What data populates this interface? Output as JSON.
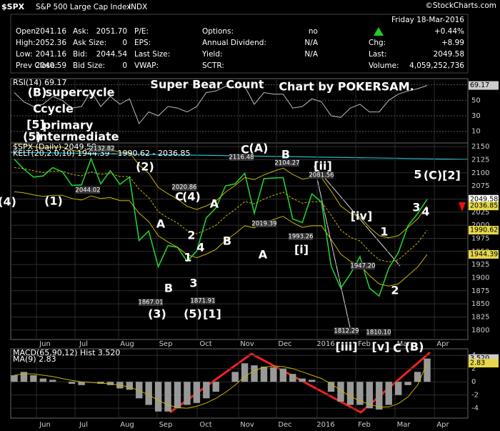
{
  "header": {
    "symbol": "$SPX",
    "name": "S&P 500 Large Cap Index",
    "exchange": "INDX",
    "credit": "©StockCharts.com",
    "date": "Friday 18-Mar-2016"
  },
  "quote": {
    "rows": [
      [
        {
          "label": "Open:",
          "value": "2041.16"
        },
        {
          "label": "Ask:",
          "value": "2051.70"
        },
        {
          "label": "P/E:"
        },
        {
          "label": "Options:",
          "value": "no"
        },
        {
          "value": "+0.44%"
        }
      ],
      [
        {
          "label": "High:",
          "value": "2052.36"
        },
        {
          "label": "Ask Size:",
          "value": "0"
        },
        {
          "label": "EPS:"
        },
        {
          "label": "Annual Dividend:",
          "value": "N/A"
        },
        {
          "label": "Chg:",
          "value": "+8.99"
        }
      ],
      [
        {
          "label": "Low:",
          "value": "2041.16"
        },
        {
          "label": "Bid:",
          "value": "2044.54"
        },
        {
          "label": "Last Size:"
        },
        {
          "label": "Yield:",
          "value": "N/A"
        },
        {
          "label": "Last:",
          "value": "2049.58"
        }
      ],
      [
        {
          "label": "Prev Close:",
          "value": "2040.59"
        },
        {
          "label": "Bid Size:",
          "value": "0"
        },
        {
          "label": "VWAP:"
        },
        {
          "label": "SCTR:"
        },
        {
          "label": "Volume:",
          "value": "4,059,252,736"
        }
      ]
    ]
  },
  "chart_data": [
    {
      "type": "line",
      "legend": "RSI(14) 69.17",
      "ylim": [
        -5,
        78
      ],
      "yticks": [
        10,
        30,
        50,
        70
      ],
      "series": [
        {
          "color": "#bbbbbb",
          "values": [
            60,
            48,
            42,
            45,
            55,
            50,
            40,
            42,
            62,
            42,
            55,
            45,
            52,
            20,
            35,
            30,
            42,
            40,
            35,
            42,
            60,
            62,
            68,
            66,
            68,
            45,
            60,
            58,
            58,
            40,
            42,
            52,
            48,
            30,
            28,
            40,
            45,
            35,
            35,
            50,
            58,
            62,
            65,
            69.17
          ]
        }
      ],
      "tags": [
        {
          "label": "69.17",
          "value": 69.17,
          "color": "#cccccc"
        }
      ]
    },
    {
      "type": "line",
      "legend": [
        "$SPX (Daily) 2049.58",
        "KELT(20,2.0,10) 1944.39 - 1990.62 - 2036.85"
      ],
      "ylim": [
        1782,
        2157
      ],
      "yticks": [
        1800,
        1825,
        1850,
        1875,
        1900,
        1925,
        1950,
        1975,
        2000,
        2025,
        2050,
        2075,
        2100,
        2125,
        2150
      ],
      "grid": true,
      "x_labels": [
        "Jun",
        "Jul",
        "Aug",
        "Sep",
        "Oct",
        "Nov",
        "Dec",
        "2016",
        "Feb",
        "Mar",
        "Apr"
      ],
      "series": [
        {
          "color": "#22cc33",
          "values": [
            2126,
            2107,
            2092,
            2094,
            2110,
            2102,
            2076,
            2077,
            2127,
            2079,
            2104,
            2078,
            2092,
            1971,
            1989,
            1921,
            1961,
            1958,
            1931,
            1951,
            2014,
            2033,
            2075,
            2079,
            2099,
            2023,
            2089,
            2090,
            2091,
            2012,
            2005,
            2060,
            2044,
            1922,
            1880,
            1907,
            1940,
            1880,
            1865,
            1918,
            1948,
            1999,
            2022,
            2049.58
          ]
        },
        {
          "color": "#c8b400",
          "values": [
            2156,
            2154,
            2150,
            2147,
            2149,
            2149,
            2143,
            2140,
            2148,
            2143,
            2145,
            2139,
            2139,
            2115,
            2099,
            2072,
            2060,
            2050,
            2036,
            2030,
            2037,
            2046,
            2063,
            2076,
            2091,
            2087,
            2096,
            2103,
            2109,
            2097,
            2088,
            2091,
            2091,
            2065,
            2037,
            2023,
            2016,
            1996,
            1980,
            1976,
            1980,
            1996,
            2012,
            2036.85
          ]
        },
        {
          "color": "#c8b400",
          "dash": true,
          "values": [
            2110,
            2108,
            2104,
            2101,
            2103,
            2103,
            2097,
            2094,
            2102,
            2097,
            2099,
            2093,
            2093,
            2069,
            2053,
            2026,
            2014,
            2004,
            1990,
            1984,
            1991,
            2000,
            2017,
            2030,
            2045,
            2041,
            2050,
            2057,
            2063,
            2051,
            2042,
            2045,
            2045,
            2019,
            1991,
            1977,
            1970,
            1950,
            1934,
            1930,
            1934,
            1950,
            1966,
            1990.62
          ]
        },
        {
          "color": "#c8b400",
          "values": [
            2064,
            2062,
            2058,
            2055,
            2057,
            2057,
            2051,
            2048,
            2056,
            2051,
            2053,
            2047,
            2047,
            2023,
            2007,
            1980,
            1968,
            1958,
            1944,
            1938,
            1945,
            1954,
            1971,
            1984,
            1999,
            1995,
            2004,
            2011,
            2017,
            2005,
            1996,
            1999,
            1999,
            1973,
            1945,
            1931,
            1924,
            1904,
            1888,
            1884,
            1888,
            1904,
            1920,
            1944.39
          ]
        }
      ],
      "tags": [
        {
          "label": "2049.58",
          "value": 2049.58,
          "color": "#ffffff"
        },
        {
          "label": "2036.85",
          "value": 2036.85,
          "color": "#e6d84a"
        },
        {
          "label": "1990.62",
          "value": 1990.62,
          "color": "#e6d84a"
        },
        {
          "label": "1944.39",
          "value": 1944.39,
          "color": "#e6d84a"
        }
      ],
      "annotations": [
        {
          "text": "(B)",
          "color": "#22dd22"
        },
        {
          "text": "supercycle",
          "color": "#22dd22"
        },
        {
          "text": "C",
          "color": "#dd22dd"
        },
        {
          "text": "cycle",
          "color": "#dd22dd"
        },
        {
          "text": "[5]",
          "color": "#ffffff"
        },
        {
          "text": "primary",
          "color": "#ffffff"
        },
        {
          "text": "(5)",
          "color": "#dd1111"
        },
        {
          "text": "intermediate",
          "color": "#dd1111"
        },
        {
          "text": "Super Bear Count",
          "color": "#dd22dd"
        },
        {
          "text": "Chart by POKERSAM.",
          "color": "#ffffff"
        },
        {
          "text": "(4)",
          "color": "#dd1111"
        },
        {
          "text": "(1)",
          "color": "#dd1111"
        },
        {
          "text": "(2)",
          "color": "#dd1111"
        },
        {
          "text": "(3)",
          "color": "#dd1111"
        },
        {
          "text": "A",
          "color": "#33dddd"
        },
        {
          "text": "B",
          "color": "#33dddd"
        },
        {
          "text": "C",
          "color": "#33dddd"
        },
        {
          "text": "(4)",
          "color": "#dd1111"
        },
        {
          "text": "2",
          "color": "#33dddd"
        },
        {
          "text": "1",
          "color": "#33dddd"
        },
        {
          "text": "4",
          "color": "#33dddd"
        },
        {
          "text": "3",
          "color": "#33dddd"
        },
        {
          "text": "(5)",
          "color": "#dd1111"
        },
        {
          "text": "[1]",
          "color": "#ffffff"
        },
        {
          "text": "A",
          "color": "#33dddd"
        },
        {
          "text": "B",
          "color": "#33dddd"
        },
        {
          "text": "C",
          "color": "#33dddd"
        },
        {
          "text": "(A)",
          "color": "#dd1111"
        },
        {
          "text": "B",
          "color": "#33dddd"
        },
        {
          "text": "A",
          "color": "#33dddd"
        },
        {
          "text": "[ii]",
          "color": "#22dd22"
        },
        {
          "text": "[i]",
          "color": "#22dd22"
        },
        {
          "text": "[iii]",
          "color": "#22dd22"
        },
        {
          "text": "[iv]",
          "color": "#22dd22"
        },
        {
          "text": "[v]",
          "color": "#22dd22"
        },
        {
          "text": "C",
          "color": "#33dddd"
        },
        {
          "text": "(B)",
          "color": "#dd1111"
        },
        {
          "text": "1",
          "color": "#33dddd"
        },
        {
          "text": "2",
          "color": "#33dddd"
        },
        {
          "text": "3",
          "color": "#33dddd"
        },
        {
          "text": "4",
          "color": "#33dddd"
        },
        {
          "text": "5",
          "color": "#33dddd"
        },
        {
          "text": "(C)",
          "color": "#dd1111"
        },
        {
          "text": "[2]",
          "color": "#ffffff"
        }
      ],
      "price_labels": [
        "2044.02",
        "2132.82",
        "1867.01",
        "2020.86",
        "1871.91",
        "2116.48",
        "2104.27",
        "2081.56",
        "2019.39",
        "1993.26",
        "1947.20",
        "1812.29",
        "1810.10"
      ]
    },
    {
      "type": "bar",
      "legend": [
        "MACD(65,90,12) Hist 3.520",
        "MA(9) 2.83"
      ],
      "ylim": [
        -5.5,
        5
      ],
      "yticks": [
        -4,
        -2,
        0,
        2,
        4
      ],
      "series": [
        {
          "color": "#999999",
          "values": [
            1,
            1.5,
            1,
            0.5,
            0.3,
            0,
            -0.3,
            -0.5,
            0,
            -0.3,
            -0.5,
            -1,
            -1.2,
            -2.5,
            -3.5,
            -4.5,
            -4.5,
            -4,
            -3.5,
            -3.2,
            -2.5,
            -1.5,
            0,
            1.5,
            2.8,
            2.5,
            2.3,
            2.2,
            2,
            1.2,
            0.5,
            0.3,
            0,
            -1.5,
            -3,
            -3.5,
            -3.5,
            -4,
            -4.2,
            -3.5,
            -2,
            -0.5,
            1.5,
            3.52
          ]
        },
        {
          "color": "#c8b400",
          "type": "line",
          "values": [
            1,
            1.2,
            1.2,
            1,
            0.8,
            0.5,
            0.2,
            0,
            -0.1,
            -0.2,
            -0.3,
            -0.5,
            -0.8,
            -1.3,
            -2,
            -2.8,
            -3.5,
            -3.9,
            -4,
            -3.7,
            -3.2,
            -2.5,
            -1.6,
            -0.5,
            0.8,
            1.7,
            2.2,
            2.4,
            2.3,
            2,
            1.5,
            1,
            0.5,
            -0.3,
            -1.3,
            -2.2,
            -2.9,
            -3.4,
            -3.8,
            -3.8,
            -3.3,
            -2.3,
            -0.5,
            2.83
          ]
        }
      ],
      "tags": [
        {
          "label": "3.520",
          "value": 3.52,
          "color": "#cccccc"
        },
        {
          "label": "2.83",
          "value": 2.83,
          "color": "#e6d84a"
        }
      ]
    }
  ]
}
